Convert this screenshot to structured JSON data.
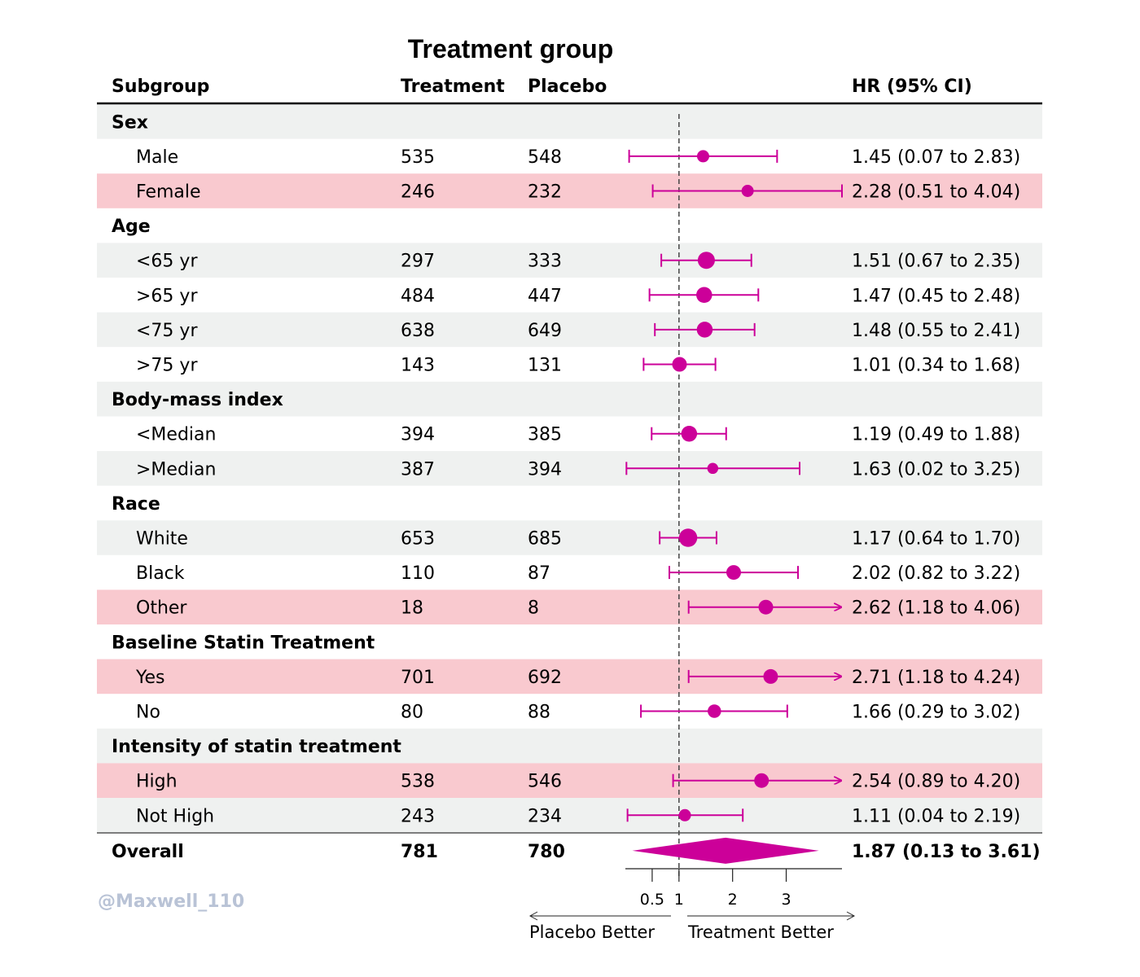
{
  "chart_data": {
    "type": "forest",
    "title": "Treatment group",
    "columns": {
      "subgroup": "Subgroup",
      "treatment": "Treatment",
      "placebo": "Placebo",
      "hr": "HR (95% CI)"
    },
    "reference_line": 1,
    "xlim": [
      0,
      4.04
    ],
    "x_ticks": [
      {
        "value": 0.5,
        "label": "0.5"
      },
      {
        "value": 1,
        "label": "1"
      },
      {
        "value": 2,
        "label": "2"
      },
      {
        "value": 3,
        "label": "3"
      }
    ],
    "axis_labels": {
      "left": "Placebo Better",
      "right": "Treatment Better"
    },
    "highlight_color": "#f9c9cf",
    "band_color": "#eff1f0",
    "marker_color": "#cc0099",
    "rows": [
      {
        "kind": "group",
        "label": "Sex"
      },
      {
        "kind": "item",
        "label": "Male",
        "treatment": "535",
        "placebo": "548",
        "hr": 1.45,
        "lo": 0.07,
        "hi": 2.83,
        "text": "1.45 (0.07 to 2.83)",
        "size": 1
      },
      {
        "kind": "item",
        "label": "Female",
        "treatment": "246",
        "placebo": "232",
        "hr": 2.28,
        "lo": 0.51,
        "hi": 4.04,
        "text": "2.28 (0.51 to 4.04)",
        "highlight": true,
        "size": 1
      },
      {
        "kind": "group",
        "label": "Age"
      },
      {
        "kind": "item",
        "label": "<65 yr",
        "treatment": "297",
        "placebo": "333",
        "hr": 1.51,
        "lo": 0.67,
        "hi": 2.35,
        "text": "1.51 (0.67 to 2.35)",
        "size": 1.4
      },
      {
        "kind": "item",
        "label": ">65 yr",
        "treatment": "484",
        "placebo": "447",
        "hr": 1.47,
        "lo": 0.45,
        "hi": 2.48,
        "text": "1.47 (0.45 to 2.48)",
        "size": 1.3
      },
      {
        "kind": "item",
        "label": "<75 yr",
        "treatment": "638",
        "placebo": "649",
        "hr": 1.48,
        "lo": 0.55,
        "hi": 2.41,
        "text": "1.48 (0.55 to 2.41)",
        "size": 1.3
      },
      {
        "kind": "item",
        "label": ">75 yr",
        "treatment": "143",
        "placebo": "131",
        "hr": 1.01,
        "lo": 0.34,
        "hi": 1.68,
        "text": "1.01 (0.34 to 1.68)",
        "size": 1.2
      },
      {
        "kind": "group",
        "label": "Body-mass index"
      },
      {
        "kind": "item",
        "label": "<Median",
        "treatment": "394",
        "placebo": "385",
        "hr": 1.19,
        "lo": 0.49,
        "hi": 1.88,
        "text": "1.19 (0.49 to 1.88)",
        "size": 1.3
      },
      {
        "kind": "item",
        "label": ">Median",
        "treatment": "387",
        "placebo": "394",
        "hr": 1.63,
        "lo": 0.02,
        "hi": 3.25,
        "text": "1.63 (0.02 to 3.25)",
        "size": 0.9
      },
      {
        "kind": "group",
        "label": "Race"
      },
      {
        "kind": "item",
        "label": "White",
        "treatment": "653",
        "placebo": "685",
        "hr": 1.17,
        "lo": 0.64,
        "hi": 1.7,
        "text": "1.17 (0.64 to 1.70)",
        "size": 1.5
      },
      {
        "kind": "item",
        "label": "Black",
        "treatment": "110",
        "placebo": "87",
        "hr": 2.02,
        "lo": 0.82,
        "hi": 3.22,
        "text": "2.02 (0.82 to 3.22)",
        "size": 1.2
      },
      {
        "kind": "item",
        "label": "Other",
        "treatment": "18",
        "placebo": "8",
        "hr": 2.62,
        "lo": 1.18,
        "hi": 4.06,
        "text": "2.62 (1.18 to 4.06)",
        "highlight": true,
        "size": 1.2
      },
      {
        "kind": "group",
        "label": "Baseline Statin Treatment"
      },
      {
        "kind": "item",
        "label": "Yes",
        "treatment": "701",
        "placebo": "692",
        "hr": 2.71,
        "lo": 1.18,
        "hi": 4.24,
        "text": "2.71 (1.18 to 4.24)",
        "highlight": true,
        "size": 1.2
      },
      {
        "kind": "item",
        "label": "No",
        "treatment": "80",
        "placebo": "88",
        "hr": 1.66,
        "lo": 0.29,
        "hi": 3.02,
        "text": "1.66 (0.29 to 3.02)",
        "size": 1.1
      },
      {
        "kind": "group",
        "label": "Intensity of statin treatment"
      },
      {
        "kind": "item",
        "label": "High",
        "treatment": "538",
        "placebo": "546",
        "hr": 2.54,
        "lo": 0.89,
        "hi": 4.2,
        "text": "2.54 (0.89 to 4.20)",
        "highlight": true,
        "size": 1.2
      },
      {
        "kind": "item",
        "label": "Not High",
        "treatment": "243",
        "placebo": "234",
        "hr": 1.11,
        "lo": 0.04,
        "hi": 2.19,
        "text": "1.11 (0.04 to 2.19)",
        "size": 1
      }
    ],
    "overall": {
      "label": "Overall",
      "treatment": "781",
      "placebo": "780",
      "hr": 1.87,
      "lo": 0.13,
      "hi": 3.61,
      "text": "1.87 (0.13 to 3.61)"
    }
  },
  "credit": "@Maxwell_110"
}
